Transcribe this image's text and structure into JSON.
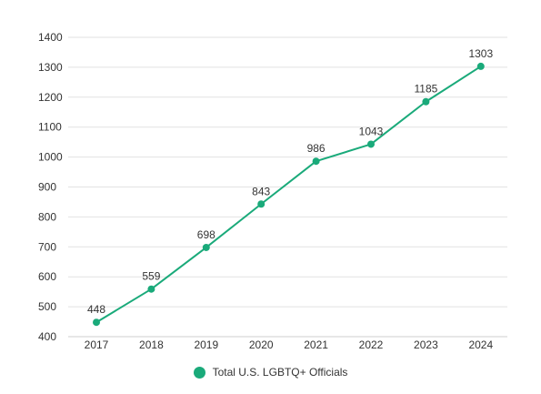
{
  "chart_data": {
    "type": "line",
    "categories": [
      "2017",
      "2018",
      "2019",
      "2020",
      "2021",
      "2022",
      "2023",
      "2024"
    ],
    "series": [
      {
        "name": "Total U.S. LGBTQ+ Officials",
        "values": [
          448,
          559,
          698,
          843,
          986,
          1043,
          1185,
          1303
        ]
      }
    ],
    "data_labels": [
      "448",
      "559",
      "698",
      "843",
      "986",
      "1043",
      "1185",
      "1303"
    ],
    "ylim": [
      400,
      1400
    ],
    "yticks": [
      "400",
      "500",
      "600",
      "700",
      "800",
      "900",
      "1000",
      "1100",
      "1200",
      "1300",
      "1400"
    ],
    "grid": true,
    "legend_position": "bottom-center",
    "series_color": "#1aaa7a"
  }
}
